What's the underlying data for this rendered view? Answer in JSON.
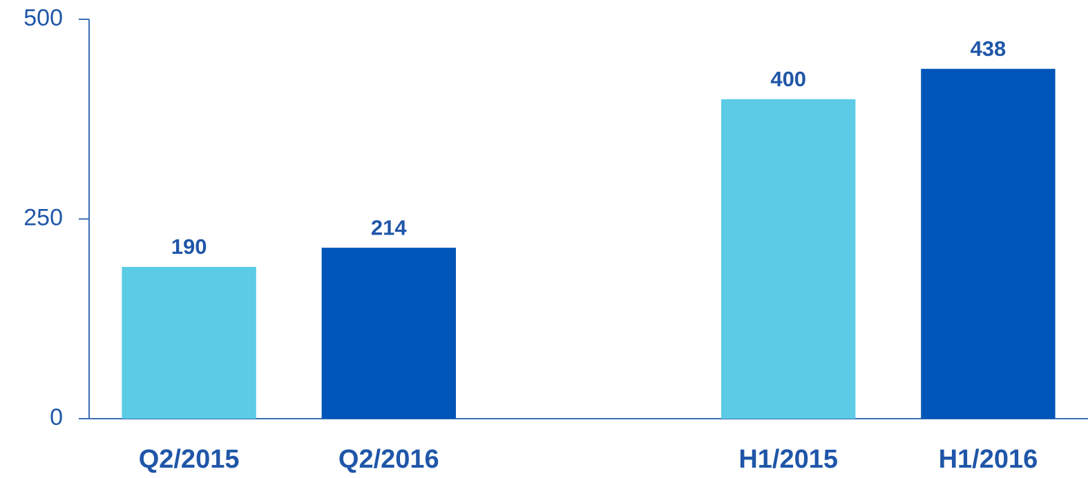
{
  "chart_data": {
    "type": "bar",
    "categories": [
      "Q2/2015",
      "Q2/2016",
      null,
      "H1/2015",
      "H1/2016"
    ],
    "values": [
      190,
      214,
      null,
      400,
      438
    ],
    "colors": [
      "#5bcbe6",
      "#0055b8",
      null,
      "#5bcbe6",
      "#0055b8"
    ],
    "ylim": [
      0,
      500
    ],
    "yticks": [
      0,
      250,
      500
    ],
    "grid": false
  }
}
